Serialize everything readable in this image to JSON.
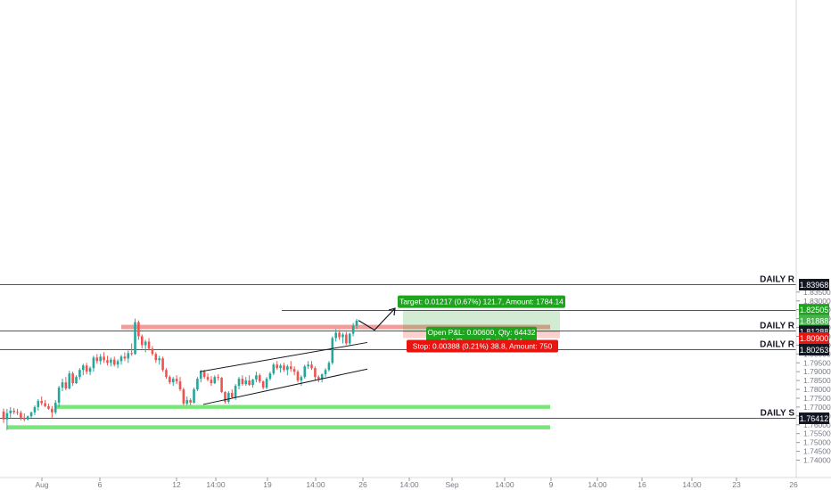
{
  "chart_data": {
    "type": "candlestick",
    "title": "",
    "xlabel": "",
    "ylabel": "",
    "ylim": [
      1.7355,
      1.8415
    ],
    "y_ticks": [
      "1.74000",
      "1.74500",
      "1.75000",
      "1.75500",
      "1.76000",
      "1.76500",
      "1.77000",
      "1.77500",
      "1.78000",
      "1.78500",
      "1.79000",
      "1.79500",
      "1.80000",
      "1.80500",
      "1.81000",
      "1.81500",
      "1.82000",
      "1.82500",
      "1.83000",
      "1.83500"
    ],
    "x_ticks": [
      "Aug",
      "6",
      "12",
      "14:00",
      "19",
      "14:00",
      "26",
      "14:00",
      "Sep",
      "14:00",
      "9",
      "14:00",
      "16",
      "14:00",
      "23",
      "26"
    ],
    "candles": [
      [
        1.7675,
        1.7692,
        1.761,
        1.763
      ],
      [
        1.763,
        1.769,
        1.757,
        1.7665
      ],
      [
        1.7665,
        1.77,
        1.764,
        1.768
      ],
      [
        1.768,
        1.7695,
        1.766,
        1.7672
      ],
      [
        1.7672,
        1.769,
        1.7655,
        1.7668
      ],
      [
        1.7668,
        1.768,
        1.7625,
        1.764
      ],
      [
        1.764,
        1.7665,
        1.762,
        1.763
      ],
      [
        1.763,
        1.7652,
        1.7625,
        1.7648
      ],
      [
        1.7648,
        1.7675,
        1.764,
        1.767
      ],
      [
        1.767,
        1.771,
        1.7655,
        1.77
      ],
      [
        1.77,
        1.7745,
        1.768,
        1.7735
      ],
      [
        1.7735,
        1.776,
        1.771,
        1.7722
      ],
      [
        1.7722,
        1.774,
        1.77,
        1.7705
      ],
      [
        1.7705,
        1.772,
        1.7685,
        1.769
      ],
      [
        1.769,
        1.7705,
        1.764,
        1.767
      ],
      [
        1.767,
        1.774,
        1.766,
        1.7725
      ],
      [
        1.7725,
        1.782,
        1.77,
        1.781
      ],
      [
        1.781,
        1.786,
        1.779,
        1.784
      ],
      [
        1.784,
        1.787,
        1.7795,
        1.7805
      ],
      [
        1.7805,
        1.7905,
        1.78,
        1.789
      ],
      [
        1.789,
        1.79,
        1.782,
        1.7835
      ],
      [
        1.7835,
        1.788,
        1.783,
        1.787
      ],
      [
        1.787,
        1.792,
        1.7855,
        1.791
      ],
      [
        1.791,
        1.7945,
        1.788,
        1.7935
      ],
      [
        1.7935,
        1.795,
        1.7885,
        1.79
      ],
      [
        1.79,
        1.793,
        1.788,
        1.792
      ],
      [
        1.792,
        1.799,
        1.79,
        1.798
      ],
      [
        1.798,
        1.8,
        1.7945,
        1.796
      ],
      [
        1.796,
        1.8,
        1.794,
        1.7985
      ],
      [
        1.7985,
        1.801,
        1.795,
        1.7965
      ],
      [
        1.7965,
        1.799,
        1.7935,
        1.795
      ],
      [
        1.795,
        1.798,
        1.793,
        1.7968
      ],
      [
        1.7968,
        1.7985,
        1.793,
        1.794
      ],
      [
        1.794,
        1.797,
        1.792,
        1.796
      ],
      [
        1.796,
        1.7995,
        1.794,
        1.7985
      ],
      [
        1.7985,
        1.801,
        1.796,
        1.7975
      ],
      [
        1.7975,
        1.802,
        1.795,
        1.8005
      ],
      [
        1.8005,
        1.806,
        1.799,
        1.8
      ],
      [
        1.8,
        1.82,
        1.7995,
        1.818
      ],
      [
        1.818,
        1.819,
        1.808,
        1.81
      ],
      [
        1.81,
        1.811,
        1.803,
        1.805
      ],
      [
        1.805,
        1.808,
        1.801,
        1.807
      ],
      [
        1.807,
        1.809,
        1.802,
        1.803
      ],
      [
        1.803,
        1.8045,
        1.799,
        1.8
      ],
      [
        1.8,
        1.801,
        1.795,
        1.7965
      ],
      [
        1.7965,
        1.799,
        1.794,
        1.7975
      ],
      [
        1.7975,
        1.7985,
        1.79,
        1.791
      ],
      [
        1.791,
        1.792,
        1.786,
        1.787
      ],
      [
        1.787,
        1.788,
        1.783,
        1.784
      ],
      [
        1.784,
        1.787,
        1.782,
        1.786
      ],
      [
        1.786,
        1.788,
        1.783,
        1.7845
      ],
      [
        1.7845,
        1.787,
        1.779,
        1.78
      ],
      [
        1.78,
        1.781,
        1.771,
        1.772
      ],
      [
        1.772,
        1.776,
        1.771,
        1.774
      ],
      [
        1.774,
        1.775,
        1.771,
        1.7725
      ],
      [
        1.7725,
        1.781,
        1.772,
        1.78
      ],
      [
        1.78,
        1.787,
        1.779,
        1.786
      ],
      [
        1.786,
        1.791,
        1.784,
        1.79
      ],
      [
        1.79,
        1.791,
        1.786,
        1.787
      ],
      [
        1.787,
        1.789,
        1.7845,
        1.7855
      ],
      [
        1.7855,
        1.7875,
        1.782,
        1.7835
      ],
      [
        1.7835,
        1.788,
        1.783,
        1.787
      ],
      [
        1.787,
        1.7885,
        1.785,
        1.7865
      ],
      [
        1.7865,
        1.787,
        1.778,
        1.7785
      ],
      [
        1.7785,
        1.779,
        1.772,
        1.773
      ],
      [
        1.773,
        1.779,
        1.772,
        1.778
      ],
      [
        1.778,
        1.78,
        1.775,
        1.7755
      ],
      [
        1.7755,
        1.783,
        1.774,
        1.782
      ],
      [
        1.782,
        1.787,
        1.78,
        1.786
      ],
      [
        1.786,
        1.788,
        1.782,
        1.783
      ],
      [
        1.783,
        1.787,
        1.782,
        1.785
      ],
      [
        1.785,
        1.788,
        1.782,
        1.7825
      ],
      [
        1.7825,
        1.786,
        1.781,
        1.7855
      ],
      [
        1.7855,
        1.79,
        1.784,
        1.788
      ],
      [
        1.788,
        1.789,
        1.7835,
        1.7845
      ],
      [
        1.7845,
        1.785,
        1.78,
        1.781
      ],
      [
        1.781,
        1.787,
        1.78,
        1.786
      ],
      [
        1.786,
        1.79,
        1.785,
        1.789
      ],
      [
        1.789,
        1.795,
        1.788,
        1.794
      ],
      [
        1.794,
        1.796,
        1.791,
        1.792
      ],
      [
        1.792,
        1.7945,
        1.7895,
        1.7935
      ],
      [
        1.7935,
        1.795,
        1.79,
        1.791
      ],
      [
        1.791,
        1.794,
        1.788,
        1.793
      ],
      [
        1.793,
        1.796,
        1.79,
        1.7915
      ],
      [
        1.7915,
        1.793,
        1.788,
        1.79
      ],
      [
        1.79,
        1.791,
        1.784,
        1.785
      ],
      [
        1.785,
        1.788,
        1.782,
        1.787
      ],
      [
        1.787,
        1.794,
        1.786,
        1.793
      ],
      [
        1.793,
        1.796,
        1.7915,
        1.794
      ],
      [
        1.794,
        1.796,
        1.791,
        1.792
      ],
      [
        1.792,
        1.793,
        1.785,
        1.787
      ],
      [
        1.787,
        1.788,
        1.784,
        1.786
      ],
      [
        1.786,
        1.789,
        1.784,
        1.7885
      ],
      [
        1.7885,
        1.792,
        1.787,
        1.791
      ],
      [
        1.791,
        1.796,
        1.79,
        1.795
      ],
      [
        1.795,
        1.81,
        1.794,
        1.809
      ],
      [
        1.809,
        1.814,
        1.807,
        1.812
      ],
      [
        1.812,
        1.8135,
        1.808,
        1.8095
      ],
      [
        1.8095,
        1.812,
        1.806,
        1.811
      ],
      [
        1.811,
        1.8125,
        1.805,
        1.806
      ],
      [
        1.806,
        1.812,
        1.805,
        1.8115
      ],
      [
        1.8115,
        1.8175,
        1.81,
        1.816
      ],
      [
        1.816,
        1.8198,
        1.814,
        1.8188
      ]
    ],
    "horizontal_levels": [
      {
        "label": "DAILY R",
        "price": "1.83968",
        "value": 1.83968
      },
      {
        "label": "DAILY R",
        "price": "1.81306",
        "value": 1.81306
      },
      {
        "label": "DAILY R",
        "price": "1.80263",
        "value": 1.80263
      },
      {
        "label": "DAILY S",
        "price": "1.76412",
        "value": 1.76412
      }
    ],
    "target_level": {
      "price": "1.82500",
      "value": 1.825
    },
    "zones": [
      {
        "kind": "resistance",
        "from": 1.814,
        "to": 1.8165,
        "color": "#f28b86"
      },
      {
        "kind": "support",
        "from": 1.769,
        "to": 1.7712,
        "color": "#5fe35f"
      },
      {
        "kind": "support",
        "from": 1.7574,
        "to": 1.7597,
        "color": "#5fe35f"
      }
    ],
    "channel": {
      "upper": [
        [
          1.79
        ],
        [
          1.8065
        ]
      ],
      "lower": [
        [
          1.7715
        ],
        [
          1.7915
        ]
      ]
    },
    "position": {
      "entry": 1.81288,
      "target": 1.82505,
      "stop": 1.809,
      "target_label": "Target: 0.01217 (0.67%) 121.7, Amount: 1784.14",
      "pnl_label": "Open P&L: 0.00600, Qty: 64432",
      "rr_label": "Risk/Reward Ratio: 3.14",
      "stop_label": "Stop: 0.00388 (0.21%) 38.8, Amount: 750"
    },
    "price_badges": [
      {
        "price": "1.82505",
        "value": 1.82505,
        "color": "#1fa41f"
      },
      {
        "price": "1.81888",
        "value": 1.81888,
        "color": "#4caf50"
      },
      {
        "price": "1.81288",
        "value": 1.81288,
        "color": "#131722"
      },
      {
        "price": "1.80900",
        "value": 1.809,
        "color": "#e7140f"
      }
    ],
    "projection": [
      [
        1.819
      ],
      [
        1.8135
      ],
      [
        1.8258
      ]
    ],
    "colors": {
      "up": "#26a69a",
      "down": "#ef5350"
    }
  }
}
